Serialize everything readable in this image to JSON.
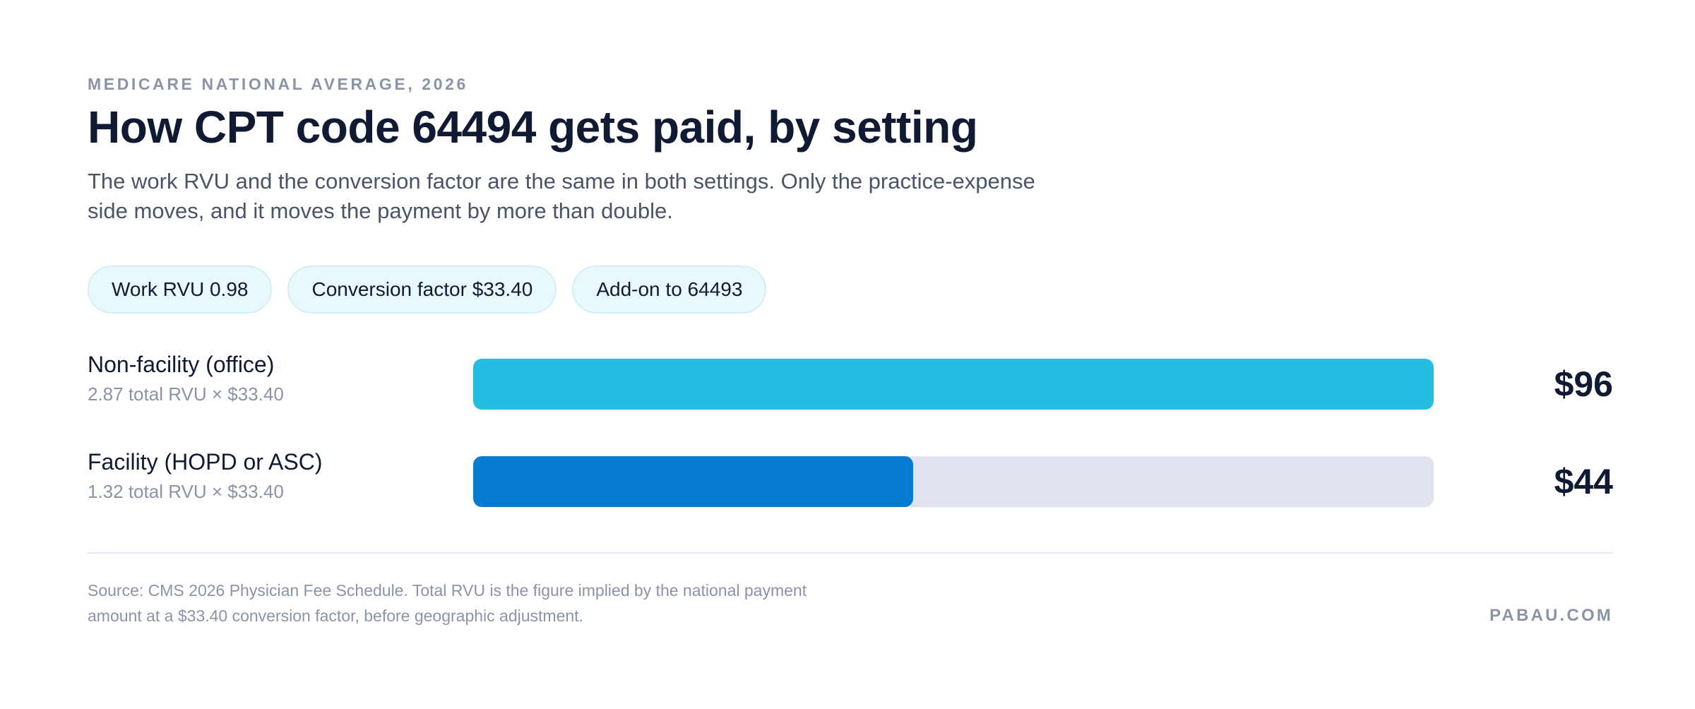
{
  "header": {
    "eyebrow": "MEDICARE NATIONAL AVERAGE, 2026",
    "title": "How CPT code 64494 gets paid, by setting",
    "subtitle": "The work RVU and the conversion factor are the same in both settings. Only the practice-expense side moves, and it moves the payment by more than double."
  },
  "pills": [
    "Work RVU 0.98",
    "Conversion factor $33.40",
    "Add-on to 64493"
  ],
  "chart_data": {
    "type": "bar",
    "orientation": "horizontal",
    "categories": [
      "Non-facility (office)",
      "Facility (HOPD or ASC)"
    ],
    "category_sublabels": [
      "2.87 total RVU × $33.40",
      "1.32 total RVU × $33.40"
    ],
    "values": [
      96,
      44
    ],
    "value_labels": [
      "$96",
      "$44"
    ],
    "xlim": [
      0,
      96
    ],
    "grid": false,
    "colors": [
      "#26bde2",
      "#057bd2"
    ],
    "track_color": "#dfe4ee"
  },
  "footer": {
    "source": "Source: CMS 2026 Physician Fee Schedule. Total RVU is the figure implied by the national payment amount at a $33.40 conversion factor, before geographic adjustment.",
    "brand": "PABAU.COM"
  }
}
